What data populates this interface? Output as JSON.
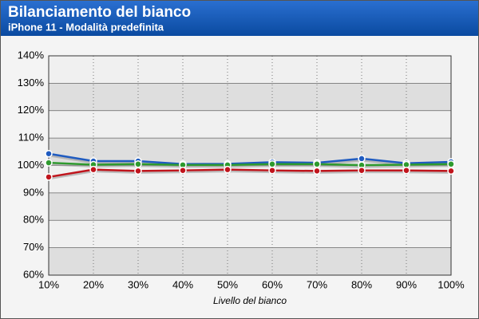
{
  "chart_data": {
    "type": "line",
    "title": "Bilanciamento del bianco",
    "subtitle": "iPhone 11 - Modalità predefinita",
    "x_label": "Livello del bianco",
    "categories": [
      "10%",
      "20%",
      "30%",
      "40%",
      "50%",
      "60%",
      "70%",
      "80%",
      "90%",
      "100%"
    ],
    "series": [
      {
        "color": "#1f5bc0",
        "values": [
          104.3,
          101.6,
          101.6,
          100.5,
          100.6,
          101.2,
          101.0,
          102.5,
          100.8,
          101.3
        ]
      },
      {
        "color": "#2e9a2e",
        "values": [
          101.0,
          100.3,
          100.5,
          100.2,
          100.2,
          100.5,
          100.5,
          100.1,
          100.3,
          100.5
        ]
      },
      {
        "color": "#c0141c",
        "values": [
          95.8,
          98.5,
          98.0,
          98.2,
          98.5,
          98.2,
          98.0,
          98.2,
          98.2,
          98.0
        ]
      }
    ],
    "ylim": [
      60,
      140
    ],
    "yticks": [
      {
        "value": 60,
        "label": "60%"
      },
      {
        "value": 70,
        "label": "70%"
      },
      {
        "value": 80,
        "label": "80%"
      },
      {
        "value": 90,
        "label": "90%"
      },
      {
        "value": 100,
        "label": "100%"
      },
      {
        "value": 110,
        "label": "110%"
      },
      {
        "value": 120,
        "label": "120%"
      },
      {
        "value": 130,
        "label": "130%"
      },
      {
        "value": 140,
        "label": "140%"
      }
    ],
    "grid": true
  }
}
